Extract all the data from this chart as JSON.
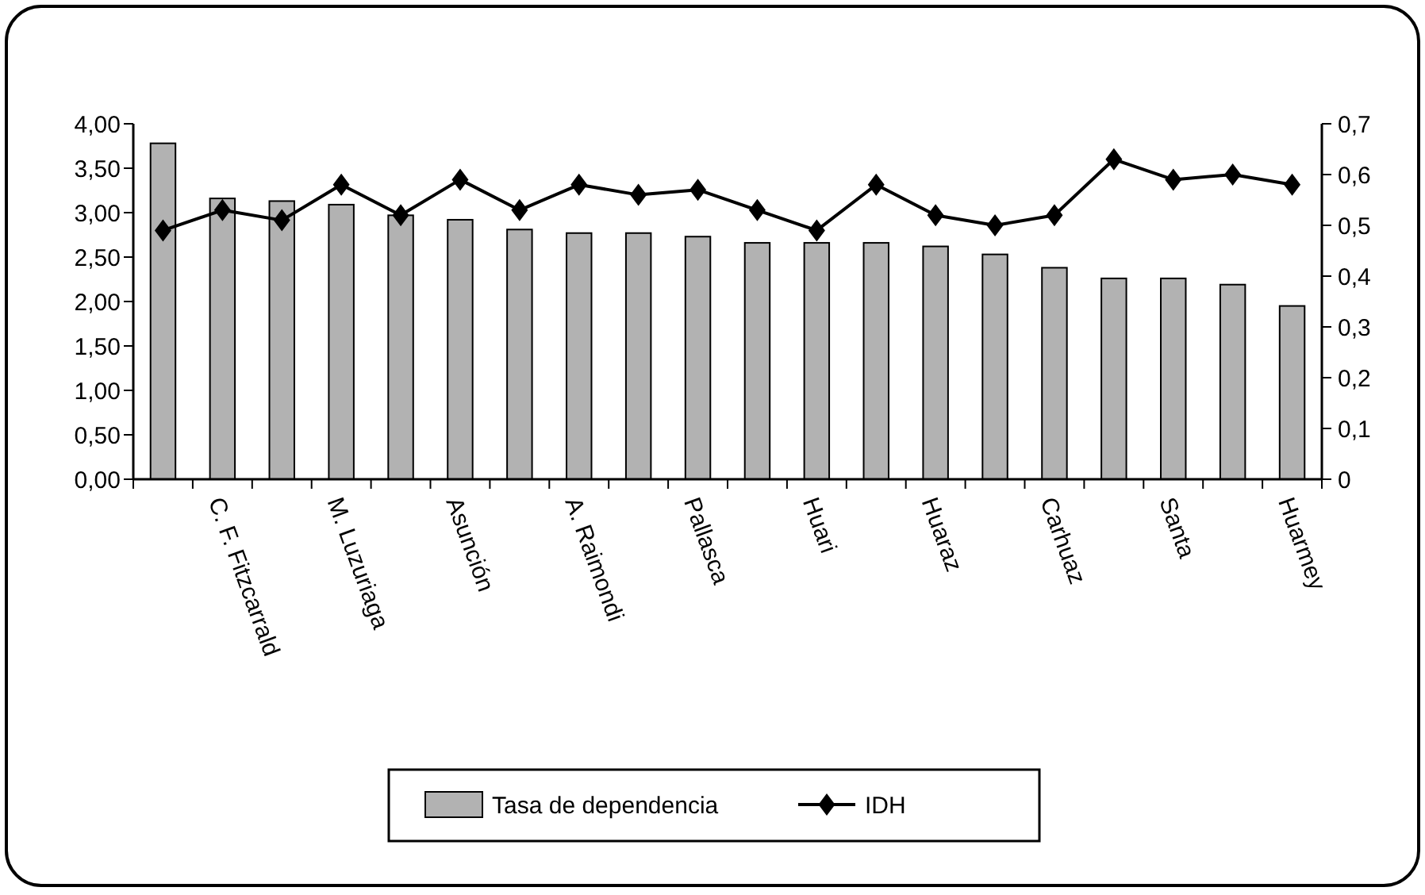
{
  "chart_data": {
    "type": "bar",
    "categories": [
      null,
      "C. F. Fitzcarrald",
      null,
      "M. Luzuriaga",
      null,
      "Asunción",
      null,
      "A. Raimondi",
      null,
      "Pallasca",
      null,
      "Huari",
      null,
      "Huaraz",
      null,
      "Carhuaz",
      null,
      "Santa",
      null,
      "Huarmey"
    ],
    "series": [
      {
        "name": "Tasa de dependencia",
        "color": "#b2b2b2",
        "values": [
          3.78,
          3.16,
          3.13,
          3.09,
          2.97,
          2.92,
          2.81,
          2.77,
          2.77,
          2.73,
          2.66,
          2.66,
          2.66,
          2.62,
          2.53,
          2.38,
          2.26,
          2.26,
          2.19,
          1.95
        ]
      },
      {
        "name": "IDH",
        "type": "line",
        "axis": "y2",
        "color": "#000000",
        "marker": "diamond",
        "values": [
          0.49,
          0.53,
          0.51,
          0.58,
          0.52,
          0.59,
          0.53,
          0.58,
          0.56,
          0.57,
          0.53,
          0.49,
          0.58,
          0.52,
          0.5,
          0.52,
          0.63,
          0.59,
          0.6,
          0.58
        ]
      }
    ],
    "ylim": [
      0,
      4
    ],
    "yticks": [
      {
        "value": 0,
        "label": "0,00"
      },
      {
        "value": 0.5,
        "label": "0,50"
      },
      {
        "value": 1,
        "label": "1,00"
      },
      {
        "value": 1.5,
        "label": "1,50"
      },
      {
        "value": 2,
        "label": "2,00"
      },
      {
        "value": 2.5,
        "label": "2,50"
      },
      {
        "value": 3,
        "label": "3,00"
      },
      {
        "value": 3.5,
        "label": "3,50"
      },
      {
        "value": 4,
        "label": "4,00"
      }
    ],
    "y2lim": [
      0,
      0.7
    ],
    "y2ticks": [
      0,
      {
        "value": 0.1,
        "label": "0,1"
      },
      {
        "value": 0.2,
        "label": "0,2"
      },
      {
        "value": 0.3,
        "label": "0,3"
      },
      {
        "value": 0.4,
        "label": "0,4"
      },
      {
        "value": 0.5,
        "label": "0,5"
      },
      {
        "value": 0.6,
        "label": "0,6"
      },
      {
        "value": 0.7,
        "label": "0,7"
      }
    ],
    "grid": false,
    "legend": "bottom"
  }
}
